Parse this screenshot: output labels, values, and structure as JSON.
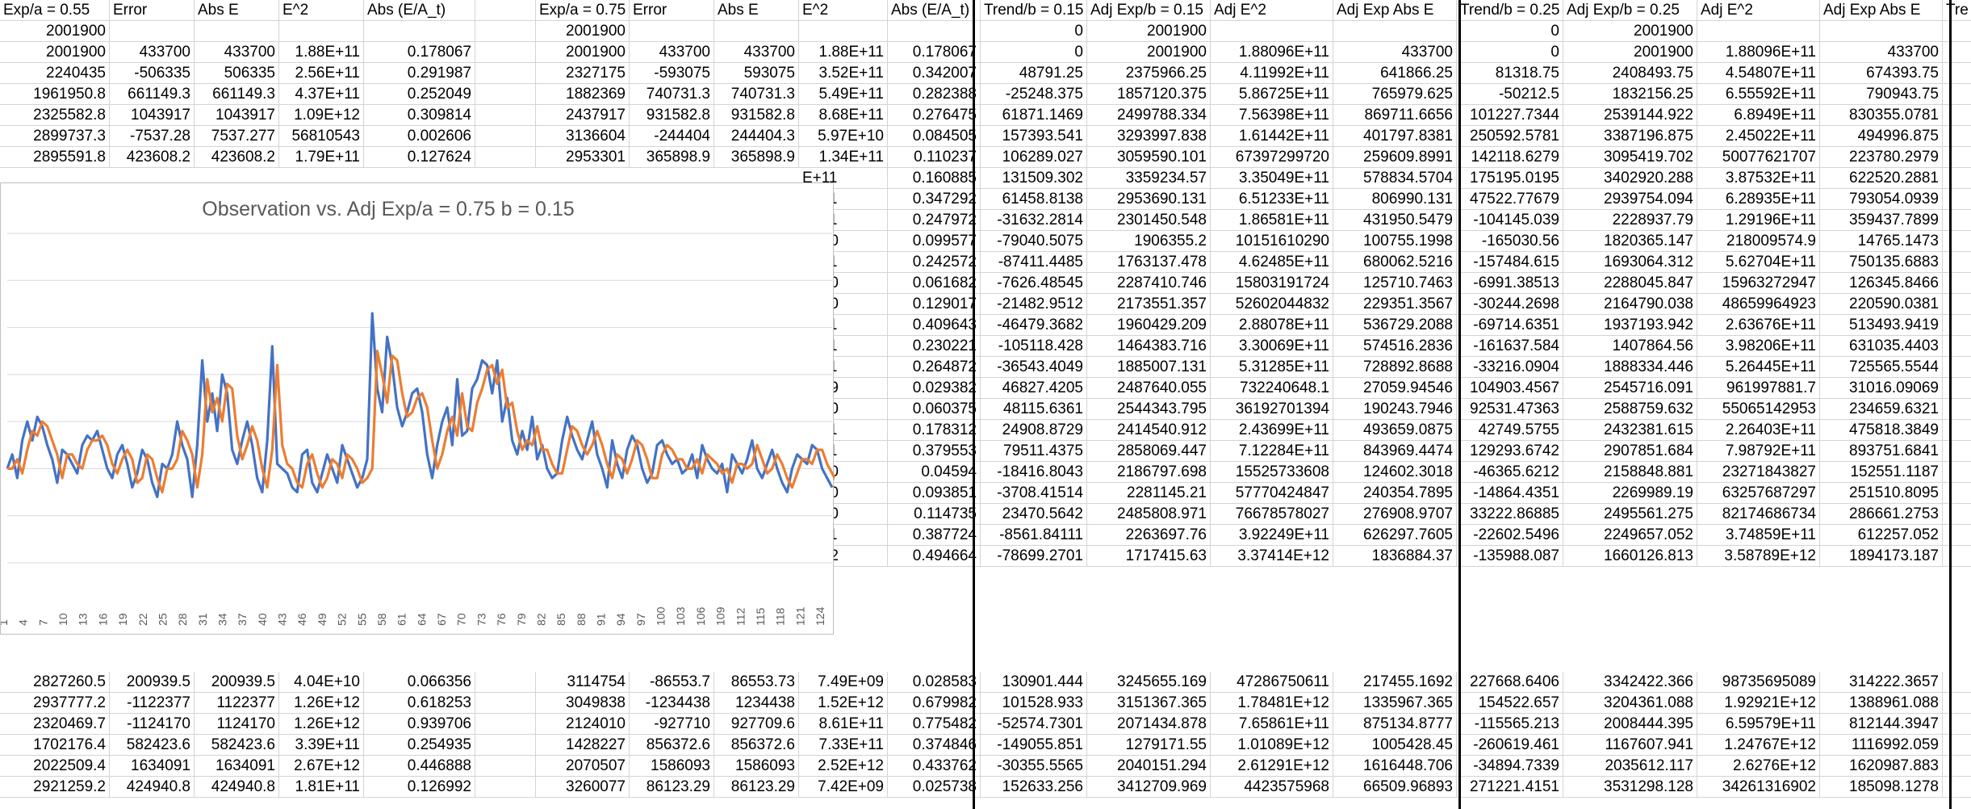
{
  "sheet": {
    "headers": [
      [
        "Exp/a = 0.55",
        "Error",
        "Abs E",
        "E^2",
        "Abs (E/A_t)",
        "",
        "Exp/a = 0.75",
        "Error",
        "Abs E",
        "E^2",
        "Abs (E/A_t)",
        "Trend/b = 0.15",
        "Adj Exp/b = 0.15",
        "Adj E^2",
        "Adj Exp Abs E",
        "Trend/b = 0.25",
        "Adj Exp/b = 0.25",
        "Adj E^2",
        "Adj Exp Abs E",
        "Tre"
      ]
    ],
    "top_rows": [
      [
        "2001900",
        "",
        "",
        "",
        "",
        "",
        "2001900",
        "",
        "",
        "",
        "",
        "0",
        "2001900",
        "",
        "",
        "0",
        "2001900",
        "",
        "",
        ""
      ],
      [
        "2001900",
        "433700",
        "433700",
        "1.88E+11",
        "0.178067",
        "",
        "2001900",
        "433700",
        "433700",
        "1.88E+11",
        "0.178067",
        "0",
        "2001900",
        "1.88096E+11",
        "433700",
        "0",
        "2001900",
        "1.88096E+11",
        "433700",
        ""
      ],
      [
        "2240435",
        "-506335",
        "506335",
        "2.56E+11",
        "0.291987",
        "",
        "2327175",
        "-593075",
        "593075",
        "3.52E+11",
        "0.342007",
        "48791.25",
        "2375966.25",
        "4.11992E+11",
        "641866.25",
        "81318.75",
        "2408493.75",
        "4.54807E+11",
        "674393.75",
        ""
      ],
      [
        "1961950.8",
        "661149.3",
        "661149.3",
        "4.37E+11",
        "0.252049",
        "",
        "1882369",
        "740731.3",
        "740731.3",
        "5.49E+11",
        "0.282388",
        "-25248.375",
        "1857120.375",
        "5.86725E+11",
        "765979.625",
        "-50212.5",
        "1832156.25",
        "6.55592E+11",
        "790943.75",
        "1"
      ],
      [
        "2325582.8",
        "1043917",
        "1043917",
        "1.09E+12",
        "0.309814",
        "",
        "2437917",
        "931582.8",
        "931582.8",
        "8.68E+11",
        "0.276475",
        "61871.1469",
        "2499788.334",
        "7.56398E+11",
        "869711.6656",
        "101227.7344",
        "2539144.922",
        "6.8949E+11",
        "830355.0781",
        "18"
      ],
      [
        "2899737.3",
        "-7537.28",
        "7537.277",
        "56810543",
        "0.002606",
        "",
        "3136604",
        "-244404",
        "244404.3",
        "5.97E+10",
        "0.084505",
        "157393.541",
        "3293997.838",
        "1.61442E+11",
        "401797.8381",
        "250592.5781",
        "3387196.875",
        "2.45022E+11",
        "494996.875",
        "4"
      ],
      [
        "2895591.8",
        "423608.2",
        "423608.2",
        "1.79E+11",
        "0.127624",
        "",
        "2953301",
        "365898.9",
        "365898.9",
        "1.34E+11",
        "0.110237",
        "106289.027",
        "3059590.101",
        "67397299720",
        "259609.8991",
        "142118.6279",
        "3095419.702",
        "50077621707",
        "223780.2979",
        "1"
      ]
    ],
    "mid_rows": [
      [
        "E+11",
        "0.160885",
        "131509.302",
        "3359234.57",
        "3.35049E+11",
        "578834.5704",
        "175195.0195",
        "3402920.288",
        "3.87532E+11",
        "622520.2881",
        "2"
      ],
      [
        "E+11",
        "0.347292",
        "61458.8138",
        "2953690.131",
        "6.51233E+11",
        "806990.131",
        "47522.77679",
        "2939754.094",
        "6.28935E+11",
        "793054.0939",
        "-"
      ],
      [
        "E+11",
        "0.247972",
        "-31632.2814",
        "2301450.548",
        "1.86581E+11",
        "431950.5479",
        "-104145.039",
        "2228937.79",
        "1.29196E+11",
        "359437.7899",
        "-"
      ],
      [
        "E+10",
        "0.099577",
        "-79040.5075",
        "1906355.2",
        "10151610290",
        "100755.1998",
        "-165030.56",
        "1820365.147",
        "218009574.9",
        "14765.1473",
        "-"
      ],
      [
        "E+11",
        "0.242572",
        "-87411.4485",
        "1763137.478",
        "4.62485E+11",
        "680062.5216",
        "-157484.615",
        "1693064.312",
        "5.62704E+11",
        "750135.6883",
        "-"
      ],
      [
        "E+10",
        "0.061682",
        "-7626.48545",
        "2287410.746",
        "15803191724",
        "125710.7463",
        "-6991.38513",
        "2288045.847",
        "15963272947",
        "126345.8466",
        "7"
      ],
      [
        "E+10",
        "0.129017",
        "-21482.9512",
        "2173551.357",
        "52602044832",
        "229351.3567",
        "-30244.2698",
        "2164790.038",
        "48659964923",
        "220590.0381",
        "-"
      ],
      [
        "E+11",
        "0.409643",
        "-46479.3682",
        "1960429.209",
        "2.88078E+11",
        "536729.2088",
        "-69714.6351",
        "1937193.942",
        "2.63676E+11",
        "513493.9419",
        "-"
      ],
      [
        "E+11",
        "0.230221",
        "-105118.428",
        "1464383.716",
        "3.30069E+11",
        "574516.2836",
        "-161637.584",
        "1407864.56",
        "3.98206E+11",
        "631035.4403",
        "-"
      ],
      [
        "E+11",
        "0.264872",
        "-36543.4049",
        "1885007.131",
        "5.31285E+11",
        "728892.8688",
        "-33216.0904",
        "1888334.446",
        "5.26445E+11",
        "725565.5544",
        "2"
      ],
      [
        "E+09",
        "0.029382",
        "46827.4205",
        "2487640.055",
        "732240648.1",
        "27059.94546",
        "104903.4567",
        "2545716.091",
        "961997881.7",
        "31016.09069",
        "2"
      ],
      [
        "E+10",
        "0.060375",
        "48115.6361",
        "2544343.795",
        "36192701394",
        "190243.7946",
        "92531.47363",
        "2588759.632",
        "55065142953",
        "234659.6321",
        "1"
      ],
      [
        "E+11",
        "0.178312",
        "24908.8729",
        "2414540.912",
        "2.43699E+11",
        "493659.0875",
        "42749.5755",
        "2432381.615",
        "2.26403E+11",
        "475818.3849",
        "4"
      ],
      [
        "E+11",
        "0.379553",
        "79511.4375",
        "2858069.447",
        "7.12284E+11",
        "843969.4474",
        "129293.6742",
        "2907851.684",
        "7.98792E+11",
        "893751.6841",
        "1"
      ],
      [
        "E+10",
        "0.04594",
        "-18416.8043",
        "2186797.698",
        "15525733608",
        "124602.3018",
        "-46365.6212",
        "2158848.881",
        "23271843827",
        "152551.1187",
        "-"
      ],
      [
        "E+10",
        "0.093851",
        "-3708.41514",
        "2281145.21",
        "57770424847",
        "240354.7895",
        "-14864.4351",
        "2269989.19",
        "63257687297",
        "251510.8095",
        "-"
      ],
      [
        "E+10",
        "0.114735",
        "23470.5642",
        "2485808.971",
        "76678578027",
        "276908.9707",
        "33222.86885",
        "2495561.275",
        "82174686734",
        "286661.2753",
        "5"
      ],
      [
        "E+11",
        "0.387724",
        "-8561.84111",
        "2263697.76",
        "3.92249E+11",
        "626297.7605",
        "-22602.5496",
        "2249657.052",
        "3.74859E+11",
        "612257.052",
        "-"
      ],
      [
        "E+12",
        "0.494664",
        "-78699.2701",
        "1717415.63",
        "3.37414E+12",
        "1836884.37",
        "-135988.087",
        "1660126.813",
        "3.58789E+12",
        "1894173.187",
        "-"
      ]
    ],
    "bottom_rows": [
      [
        "2827260.5",
        "200939.5",
        "200939.5",
        "4.04E+10",
        "0.066356",
        "",
        "3114754",
        "-86553.7",
        "86553.73",
        "7.49E+09",
        "0.028583",
        "130901.444",
        "3245655.169",
        "47286750611",
        "217455.1692",
        "227668.6406",
        "3342422.366",
        "98735695089",
        "314222.3657",
        "4"
      ],
      [
        "2937777.2",
        "-1122377",
        "1122377",
        "1.26E+12",
        "0.618253",
        "",
        "3049838",
        "-1234438",
        "1234438",
        "1.52E+12",
        "0.679982",
        "101528.933",
        "3151367.365",
        "1.78481E+12",
        "1335967.365",
        "154522.657",
        "3204361.088",
        "1.92921E+12",
        "1388961.088",
        "2"
      ],
      [
        "2320469.7",
        "-1124170",
        "1124170",
        "1.26E+12",
        "0.939706",
        "",
        "2124010",
        "-927710",
        "927709.6",
        "8.61E+11",
        "0.775482",
        "-52574.7301",
        "2071434.878",
        "7.65861E+11",
        "875134.8777",
        "-115565.213",
        "2008444.395",
        "6.59579E+11",
        "812144.3947",
        "-"
      ],
      [
        "1702176.4",
        "582423.6",
        "582423.6",
        "3.39E+11",
        "0.254935",
        "",
        "1428227",
        "856372.6",
        "856372.6",
        "7.33E+11",
        "0.374846",
        "-149055.851",
        "1279171.55",
        "1.01089E+12",
        "1005428.45",
        "-260619.461",
        "1167607.941",
        "1.24767E+12",
        "1116992.059",
        "-"
      ],
      [
        "2022509.4",
        "1634091",
        "1634091",
        "2.67E+12",
        "0.446888",
        "",
        "2070507",
        "1586093",
        "1586093",
        "2.52E+12",
        "0.433762",
        "-30355.5565",
        "2040151.294",
        "2.61291E+12",
        "1616448.706",
        "-34894.7339",
        "2035612.117",
        "2.6276E+12",
        "1620987.883",
        "2"
      ],
      [
        "2921259.2",
        "424940.8",
        "424940.8",
        "1.81E+11",
        "0.126992",
        "",
        "3260077",
        "86123.29",
        "86123.29",
        "7.42E+09",
        "0.025738",
        "152633.256",
        "3412709.969",
        "4423575968",
        "66509.96893",
        "271221.4151",
        "3531298.128",
        "34261316902",
        "185098.1278",
        "5"
      ]
    ]
  },
  "chart": {
    "title": "Observation vs. Adj Exp/a = 0.75 b = 0.15",
    "colors": {
      "observation": "#4472c4",
      "adj_exp": "#ed7d31"
    }
  },
  "chart_data": {
    "type": "line",
    "title": "Observation vs. Adj Exp/a = 0.75 b = 0.15",
    "xlabel": "",
    "ylabel": "",
    "x_tick_labels": [
      "1",
      "4",
      "7",
      "10",
      "13",
      "16",
      "19",
      "22",
      "25",
      "28",
      "31",
      "34",
      "37",
      "40",
      "43",
      "46",
      "49",
      "52",
      "55",
      "58",
      "61",
      "64",
      "67",
      "70",
      "73",
      "76",
      "79",
      "82",
      "85",
      "88",
      "91",
      "94",
      "97",
      "100",
      "103",
      "106",
      "109",
      "112",
      "115",
      "118",
      "121",
      "124"
    ],
    "ylim": [
      0,
      7
    ],
    "grid": true,
    "legend": "none",
    "series": [
      {
        "color": "#4472c4",
        "values": [
          2.0,
          2.3,
          1.8,
          2.6,
          3.0,
          2.6,
          3.1,
          2.9,
          2.5,
          2.2,
          1.7,
          2.4,
          2.3,
          2.1,
          1.9,
          2.5,
          2.7,
          2.6,
          2.8,
          2.4,
          2.0,
          1.8,
          2.3,
          2.5,
          2.1,
          1.6,
          1.9,
          2.4,
          2.2,
          1.7,
          1.4,
          2.1,
          2.0,
          2.3,
          3.0,
          2.5,
          2.2,
          1.4,
          2.5,
          4.3,
          3.0,
          3.6,
          2.8,
          4.0,
          3.6,
          2.4,
          2.1,
          2.6,
          3.0,
          2.5,
          1.8,
          1.5,
          2.6,
          4.6,
          2.1,
          2.0,
          1.9,
          1.6,
          1.5,
          2.3,
          2.4,
          1.7,
          1.5,
          1.9,
          2.3,
          2.0,
          1.7,
          2.5,
          2.2,
          1.9,
          1.6,
          1.8,
          2.2,
          5.3,
          3.7,
          3.2,
          4.8,
          4.2,
          3.3,
          2.9,
          3.2,
          3.6,
          3.7,
          3.2,
          2.3,
          1.8,
          2.5,
          3.0,
          3.3,
          2.5,
          3.9,
          2.7,
          2.8,
          3.7,
          3.9,
          4.3,
          4.2,
          3.6,
          4.3,
          3.0,
          3.5,
          2.6,
          2.3,
          2.8,
          2.4,
          3.1,
          2.2,
          2.5,
          2.0,
          1.8,
          1.9,
          2.6,
          3.1,
          2.7,
          2.4,
          2.2,
          2.6,
          3.0,
          2.3,
          2.0,
          1.6,
          2.6,
          2.1,
          1.8,
          2.4,
          2.7,
          2.5,
          2.0,
          1.7,
          1.9,
          2.5,
          2.6,
          2.3,
          2.1,
          2.2,
          1.9,
          2.0,
          2.3,
          1.8,
          2.5,
          2.2,
          2.0,
          1.9,
          2.1,
          1.5,
          2.3,
          2.1,
          1.9,
          2.2,
          2.6,
          2.0,
          1.8,
          2.1,
          2.4,
          2.0,
          1.7,
          1.5,
          2.0,
          2.3,
          2.2,
          2.1,
          2.5,
          2.4,
          2.0,
          1.8,
          1.6
        ]
      },
      {
        "color": "#ed7d31",
        "values": [
          2.0,
          2.0,
          2.2,
          1.9,
          2.4,
          2.8,
          2.7,
          3.0,
          2.9,
          2.6,
          2.3,
          1.8,
          2.3,
          2.3,
          2.1,
          2.0,
          2.4,
          2.6,
          2.6,
          2.7,
          2.5,
          2.1,
          1.9,
          2.2,
          2.4,
          2.2,
          1.7,
          1.8,
          2.3,
          2.2,
          1.8,
          1.5,
          2.0,
          2.0,
          2.2,
          2.8,
          2.6,
          2.3,
          1.6,
          2.3,
          3.9,
          3.2,
          3.5,
          3.0,
          3.8,
          3.7,
          2.7,
          2.2,
          2.5,
          2.9,
          2.6,
          2.0,
          1.6,
          2.4,
          4.2,
          2.5,
          2.1,
          2.0,
          1.7,
          1.6,
          2.1,
          2.3,
          1.9,
          1.6,
          1.8,
          2.2,
          2.1,
          1.8,
          2.3,
          2.2,
          2.0,
          1.7,
          1.8,
          2.0,
          4.5,
          4.0,
          3.4,
          4.4,
          4.3,
          3.6,
          3.1,
          3.2,
          3.5,
          3.6,
          3.3,
          2.6,
          2.0,
          2.3,
          2.8,
          3.1,
          2.7,
          3.6,
          2.9,
          2.8,
          3.4,
          3.7,
          4.1,
          4.2,
          3.8,
          4.1,
          3.3,
          3.4,
          2.8,
          2.4,
          2.6,
          2.5,
          2.9,
          2.4,
          2.4,
          2.1,
          1.9,
          1.9,
          2.4,
          2.9,
          2.8,
          2.5,
          2.3,
          2.5,
          2.8,
          2.5,
          2.1,
          1.8,
          2.3,
          2.2,
          1.9,
          2.2,
          2.6,
          2.5,
          2.2,
          1.8,
          1.8,
          2.3,
          2.5,
          2.4,
          2.2,
          2.2,
          2.0,
          2.0,
          2.2,
          1.9,
          2.3,
          2.2,
          2.1,
          1.9,
          2.0,
          1.7,
          2.1,
          2.1,
          2.0,
          2.1,
          2.5,
          2.2,
          1.9,
          2.0,
          2.3,
          2.1,
          1.8,
          1.6,
          1.9,
          2.2,
          2.2,
          2.1,
          2.4,
          2.4,
          2.1,
          1.9,
          1.7
        ]
      }
    ]
  }
}
